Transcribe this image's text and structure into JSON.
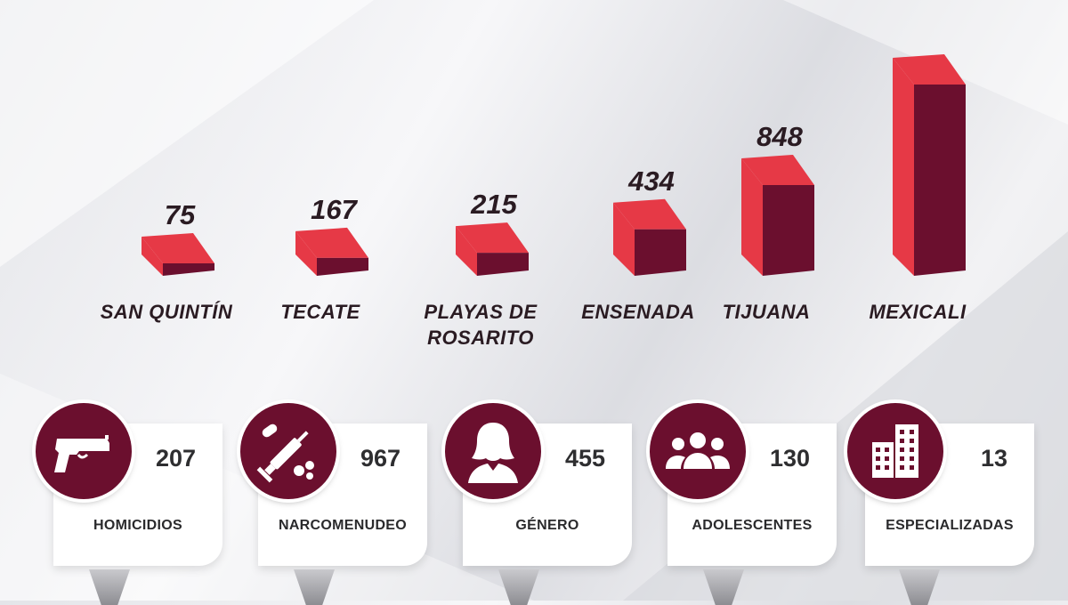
{
  "chart_data": {
    "type": "bar",
    "categories": [
      "SAN QUINTÍN",
      "TECATE",
      "PLAYAS DE ROSARITO",
      "ENSENADA",
      "TIJUANA",
      "MEXICALI"
    ],
    "values": [
      75,
      167,
      215,
      434,
      848,
      1787
    ],
    "value_labels": [
      "75",
      "167",
      "215",
      "434",
      "848",
      ""
    ],
    "category_lines": [
      [
        "SAN QUINTÍN"
      ],
      [
        "TECATE"
      ],
      [
        "PLAYAS DE",
        "ROSARITO"
      ],
      [
        "ENSENADA"
      ],
      [
        "TIJUANA"
      ],
      [
        "MEXICALI"
      ]
    ],
    "title": "",
    "xlabel": "",
    "ylabel": "",
    "colors": {
      "front": "#6b0f2e",
      "top": "#e63946",
      "side": "#e63946"
    }
  },
  "cards": [
    {
      "icon": "pistol-icon",
      "count": "207",
      "label": "HOMICIDIOS"
    },
    {
      "icon": "syringe-pills-icon",
      "count": "967",
      "label": "NARCOMENUDEO"
    },
    {
      "icon": "woman-icon",
      "count": "455",
      "label": "GÉNERO"
    },
    {
      "icon": "group-icon",
      "count": "130",
      "label": "ADOLESCENTES"
    },
    {
      "icon": "buildings-icon",
      "count": "13",
      "label": "ESPECIALIZADAS"
    }
  ],
  "theme": {
    "badge": "#6b0f2e",
    "accent": "#e63946"
  }
}
